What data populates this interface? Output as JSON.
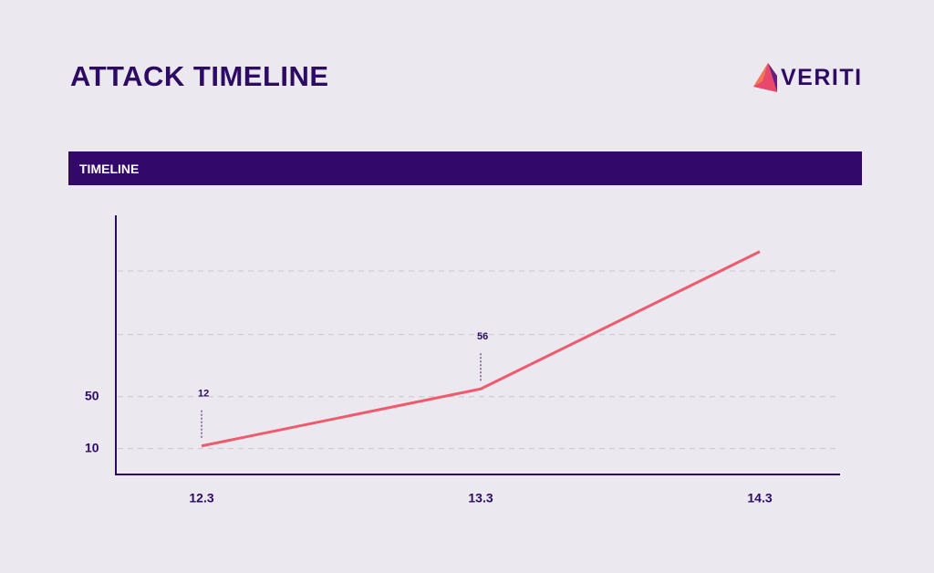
{
  "header": {
    "title": "ATTACK TIMELINE",
    "logo": "VERITI"
  },
  "section": {
    "title": "TIMELINE"
  },
  "chart_data": {
    "type": "line",
    "categories": [
      "12.3",
      "13.3",
      "14.3"
    ],
    "series": [
      {
        "color": "#ee5b6e",
        "values": [
          12,
          56,
          162
        ],
        "value_labels": [
          "12",
          "56",
          null
        ]
      }
    ],
    "ylim": [
      -10,
      190
    ],
    "yticks": [
      10,
      50,
      {
        "value": 98,
        "label": null
      },
      {
        "value": 147,
        "label": null
      }
    ],
    "grid": true
  }
}
